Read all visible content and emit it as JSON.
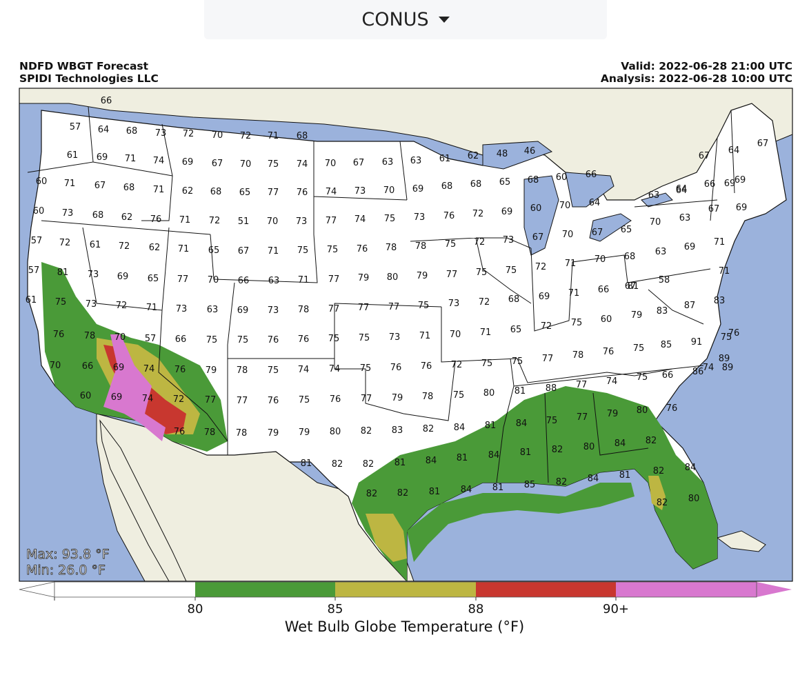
{
  "selector": {
    "value": "CONUS"
  },
  "header": {
    "title": "NDFD WBGT Forecast",
    "company": "SPIDI Technologies LLC",
    "valid": "Valid: 2022-06-28 21:00 UTC",
    "analysis": "Analysis: 2022-06-28 10:00 UTC"
  },
  "stats": {
    "max": "Max: 93.8 °F",
    "min": "Min: 26.0 °F"
  },
  "colorbar": {
    "label": "Wet Bulb Globe Temperature (°F)",
    "ticks": [
      "80",
      "85",
      "88",
      "90+"
    ],
    "colors": {
      "under": "#ffffff",
      "c80": "#4a9a38",
      "c85": "#bdb642",
      "c88": "#c8372f",
      "c90": "#d878cf"
    }
  },
  "map_colors": {
    "ocean": "#9bb2dc",
    "land": "#efeee0",
    "state_fill": "#ffffff"
  },
  "temperature_labels": [
    "66",
    "57",
    "64",
    "68",
    "73",
    "72",
    "70",
    "72",
    "71",
    "68",
    "61",
    "69",
    "71",
    "74",
    "69",
    "67",
    "70",
    "75",
    "74",
    "70",
    "67",
    "63",
    "63",
    "61",
    "62",
    "48",
    "46",
    "67",
    "64",
    "67",
    "60",
    "71",
    "67",
    "68",
    "71",
    "62",
    "68",
    "65",
    "77",
    "76",
    "74",
    "73",
    "70",
    "69",
    "68",
    "68",
    "65",
    "68",
    "60",
    "66",
    "69",
    "64",
    "66",
    "69",
    "60",
    "73",
    "68",
    "62",
    "76",
    "71",
    "72",
    "51",
    "70",
    "73",
    "77",
    "74",
    "75",
    "73",
    "76",
    "72",
    "69",
    "60",
    "70",
    "64",
    "63",
    "64",
    "67",
    "69",
    "70",
    "63",
    "57",
    "72",
    "61",
    "72",
    "62",
    "71",
    "65",
    "67",
    "71",
    "75",
    "75",
    "76",
    "78",
    "78",
    "75",
    "72",
    "73",
    "67",
    "70",
    "67",
    "65",
    "63",
    "69",
    "71",
    "57",
    "81",
    "73",
    "69",
    "65",
    "77",
    "70",
    "66",
    "63",
    "71",
    "77",
    "79",
    "80",
    "79",
    "77",
    "75",
    "75",
    "72",
    "71",
    "70",
    "68",
    "67",
    "58",
    "71",
    "61",
    "75",
    "73",
    "72",
    "71",
    "73",
    "63",
    "69",
    "73",
    "78",
    "77",
    "77",
    "77",
    "75",
    "73",
    "72",
    "68",
    "69",
    "71",
    "66",
    "81",
    "83",
    "87",
    "83",
    "76",
    "78",
    "70",
    "57",
    "66",
    "75",
    "75",
    "76",
    "76",
    "75",
    "75",
    "73",
    "71",
    "70",
    "71",
    "65",
    "72",
    "75",
    "60",
    "79",
    "85",
    "91",
    "75",
    "76",
    "70",
    "66",
    "69",
    "74",
    "76",
    "79",
    "78",
    "75",
    "74",
    "74",
    "75",
    "76",
    "76",
    "72",
    "75",
    "75",
    "77",
    "78",
    "76",
    "75",
    "66",
    "86",
    "89",
    "89",
    "74",
    "60",
    "69",
    "74",
    "72",
    "77",
    "77",
    "76",
    "75",
    "76",
    "77",
    "79",
    "78",
    "75",
    "80",
    "81",
    "88",
    "77",
    "74",
    "75",
    "76",
    "76",
    "78",
    "78",
    "79",
    "79",
    "80",
    "82",
    "83",
    "82",
    "84",
    "81",
    "84",
    "75",
    "77",
    "79",
    "80",
    "81",
    "82",
    "82",
    "81",
    "84",
    "81",
    "84",
    "81",
    "82",
    "80",
    "84",
    "82",
    "82",
    "84",
    "82",
    "82",
    "81",
    "84",
    "81",
    "85",
    "82",
    "84",
    "81",
    "82",
    "80"
  ],
  "temp_label_colors": [
    "#ffffff",
    "#4a9a38",
    "#bdb642",
    "#c8372f",
    "#d878cf"
  ]
}
